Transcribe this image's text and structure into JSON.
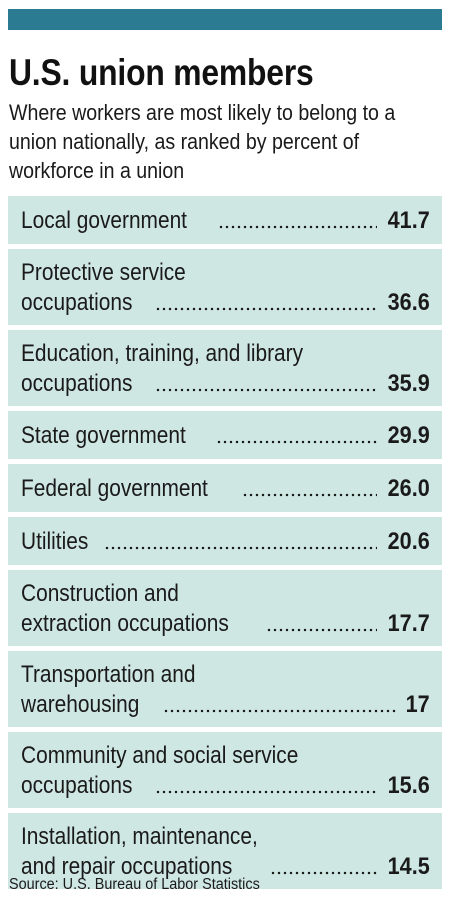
{
  "chart_data": {
    "type": "table",
    "title": "U.S. union members",
    "subtitle": "Where workers are most likely to belong to a union nationally, as ranked by percent of workforce in a union",
    "source": "Source: U.S. Bureau of Labor Statistics",
    "rows": [
      {
        "label_line1": "",
        "label_line2": "Local government",
        "value": "41.7"
      },
      {
        "label_line1": "Protective service",
        "label_line2": "occupations",
        "value": "36.6"
      },
      {
        "label_line1": "Education, training, and library",
        "label_line2": "occupations",
        "value": "35.9"
      },
      {
        "label_line1": "",
        "label_line2": "State government",
        "value": "29.9"
      },
      {
        "label_line1": "",
        "label_line2": "Federal government",
        "value": "26.0"
      },
      {
        "label_line1": "",
        "label_line2": "Utilities",
        "value": "20.6"
      },
      {
        "label_line1": "Construction and",
        "label_line2": "extraction occupations",
        "value": "17.7"
      },
      {
        "label_line1": "Transportation and",
        "label_line2": "warehousing",
        "value": "17"
      },
      {
        "label_line1": "Community and social service",
        "label_line2": "occupations",
        "value": "15.6"
      },
      {
        "label_line1": "Installation, maintenance,",
        "label_line2": "and repair occupations",
        "value": "14.5"
      }
    ]
  },
  "colors": {
    "accent_bar": "#2b7b93",
    "row_background": "#cfe7e2"
  }
}
